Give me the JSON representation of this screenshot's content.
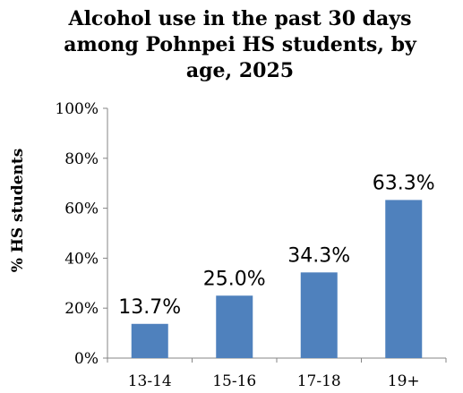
{
  "chart_data": {
    "type": "bar",
    "title_lines": [
      "Alcohol use in the past 30 days",
      "among Pohnpei HS students, by",
      "age, 2025"
    ],
    "ylabel": "% HS students",
    "xlabel": "",
    "categories": [
      "13-14",
      "15-16",
      "17-18",
      "19+"
    ],
    "values": [
      13.7,
      25.0,
      34.3,
      63.3
    ],
    "data_labels": [
      "13.7%",
      "25.0%",
      "34.3%",
      "63.3%"
    ],
    "ylim": [
      0,
      100
    ],
    "yticks": [
      0,
      20,
      40,
      60,
      80,
      100
    ],
    "ytick_labels": [
      "0%",
      "20%",
      "40%",
      "60%",
      "80%",
      "100%"
    ],
    "grid": false,
    "legend": "none",
    "bar_color": "#4F81BD"
  }
}
